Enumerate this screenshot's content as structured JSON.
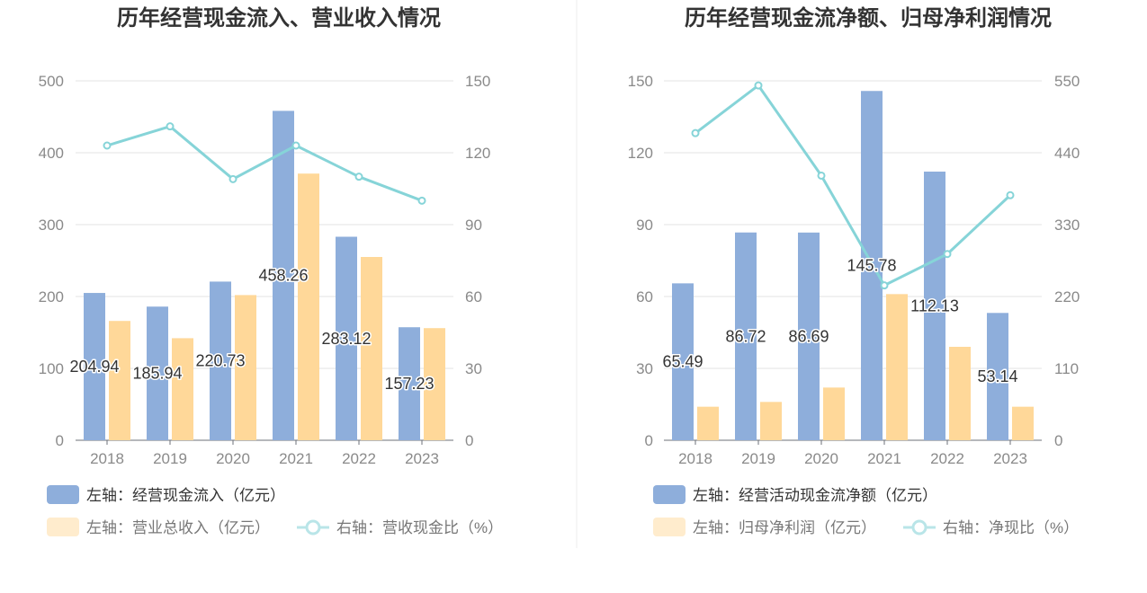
{
  "chart_data": [
    {
      "type": "bar",
      "title": "历年经营现金流入、营业收入情况",
      "categories": [
        "2018",
        "2019",
        "2020",
        "2021",
        "2022",
        "2023"
      ],
      "ylim": [
        0,
        500
      ],
      "y_ticks": [
        "0",
        "100",
        "200",
        "300",
        "400",
        "500"
      ],
      "y2lim": [
        0,
        150
      ],
      "y2_ticks": [
        "0",
        "30",
        "60",
        "90",
        "120",
        "150"
      ],
      "series": [
        {
          "name": "左轴：经营现金流入（亿元）",
          "type": "bar",
          "axis": "left",
          "color": "#8eaedb",
          "values": [
            204.94,
            185.94,
            220.73,
            458.26,
            283.12,
            157.23
          ],
          "labels": [
            "204.94",
            "185.94",
            "220.73",
            "458.26",
            "283.12",
            "157.23"
          ]
        },
        {
          "name": "左轴：营业总收入（亿元）",
          "type": "bar",
          "axis": "left",
          "color": "#ffd899",
          "values": [
            166,
            142,
            202,
            371,
            255,
            156
          ]
        },
        {
          "name": "右轴：营收现金比（%）",
          "type": "line",
          "axis": "right",
          "color": "#86d4d8",
          "values": [
            123,
            131,
            109,
            123,
            110,
            100
          ]
        }
      ],
      "legend_position": "bottom-left"
    },
    {
      "type": "bar",
      "title": "历年经营现金流净额、归母净利润情况",
      "categories": [
        "2018",
        "2019",
        "2020",
        "2021",
        "2022",
        "2023"
      ],
      "ylim": [
        0,
        150
      ],
      "y_ticks": [
        "0",
        "30",
        "60",
        "90",
        "120",
        "150"
      ],
      "y2lim": [
        0,
        550
      ],
      "y2_ticks": [
        "0",
        "110",
        "220",
        "330",
        "440",
        "550"
      ],
      "series": [
        {
          "name": "左轴：经营活动现金流净额（亿元）",
          "type": "bar",
          "axis": "left",
          "color": "#8eaedb",
          "values": [
            65.49,
            86.72,
            86.69,
            145.78,
            112.13,
            53.14
          ],
          "labels": [
            "65.49",
            "86.72",
            "86.69",
            "145.78",
            "112.13",
            "53.14"
          ]
        },
        {
          "name": "左轴：归母净利润（亿元）",
          "type": "bar",
          "axis": "left",
          "color": "#ffd899",
          "values": [
            14,
            16,
            22,
            61,
            39,
            14
          ]
        },
        {
          "name": "右轴：净现比（%）",
          "type": "line",
          "axis": "right",
          "color": "#86d4d8",
          "values": [
            470,
            543,
            405,
            237,
            285,
            375
          ]
        }
      ],
      "legend_position": "bottom-left"
    }
  ],
  "legend_line_icon_color": "#86d4d8"
}
